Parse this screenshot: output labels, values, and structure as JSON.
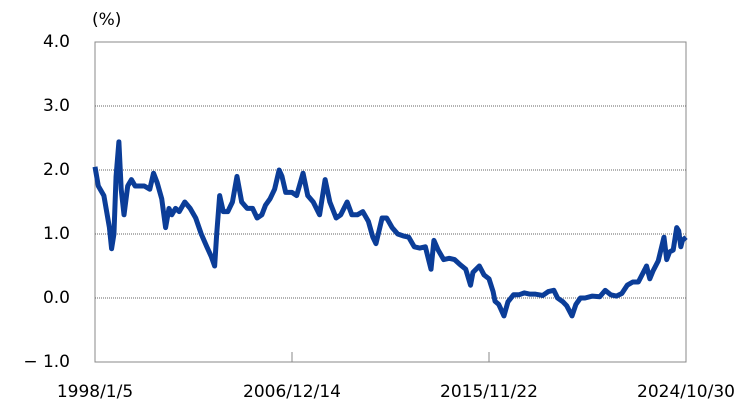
{
  "chart_data": {
    "type": "line",
    "y_label": "(%)",
    "x": [
      "1998/1/5",
      "1998/3/1",
      "1998/6/1",
      "1998/9/1",
      "1998/10/7",
      "1998/11/15",
      "1998/12/20",
      "1999/2/5",
      "1999/3/15",
      "1999/5/1",
      "1999/7/1",
      "1999/9/1",
      "1999/11/1",
      "2000/1/15",
      "2000/4/1",
      "2000/7/1",
      "2000/9/1",
      "2000/11/1",
      "2001/1/15",
      "2001/3/20",
      "2001/5/15",
      "2001/7/1",
      "2001/9/1",
      "2001/11/1",
      "2002/2/1",
      "2002/5/1",
      "2002/8/1",
      "2002/11/1",
      "2003/2/1",
      "2003/4/15",
      "2003/6/11",
      "2003/7/15",
      "2003/9/2",
      "2003/11/1",
      "2004/1/15",
      "2004/4/1",
      "2004/6/15",
      "2004/9/1",
      "2004/12/1",
      "2005/3/1",
      "2005/5/15",
      "2005/8/1",
      "2005/10/1",
      "2005/12/15",
      "2006/3/1",
      "2006/5/15",
      "2006/7/1",
      "2006/9/1",
      "2006/12/14",
      "2007/3/1",
      "2007/6/15",
      "2007/9/1",
      "2007/12/1",
      "2008/3/15",
      "2008/6/15",
      "2008/9/1",
      "2008/12/15",
      "2009/3/1",
      "2009/6/15",
      "2009/9/1",
      "2009/12/1",
      "2010/3/1",
      "2010/6/1",
      "2010/8/15",
      "2010/10/6",
      "2011/1/15",
      "2011/4/1",
      "2011/7/1",
      "2011/10/1",
      "2012/1/1",
      "2012/4/1",
      "2012/7/1",
      "2012/10/1",
      "2013/1/1",
      "2013/4/5",
      "2013/5/23",
      "2013/8/1",
      "2013/11/1",
      "2014/2/1",
      "2014/5/1",
      "2014/8/1",
      "2014/11/1",
      "2015/1/20",
      "2015/3/1",
      "2015/6/15",
      "2015/9/1",
      "2015/11/22",
      "2016/1/29",
      "2016/3/1",
      "2016/5/1",
      "2016/7/27",
      "2016/10/1",
      "2017/1/1",
      "2017/4/1",
      "2017/7/1",
      "2017/10/1",
      "2018/1/1",
      "2018/5/1",
      "2018/8/1",
      "2018/11/1",
      "2019/1/1",
      "2019/4/1",
      "2019/6/1",
      "2019/8/29",
      "2019/11/1",
      "2020/1/15",
      "2020/4/1",
      "2020/8/1",
      "2020/12/1",
      "2021/3/1",
      "2021/6/1",
      "2021/9/1",
      "2021/12/1",
      "2022/3/1",
      "2022/6/1",
      "2022/9/1",
      "2022/12/20",
      "2023/1/15",
      "2023/3/10",
      "2023/5/1",
      "2023/7/28",
      "2023/10/31",
      "2023/12/15",
      "2024/2/1",
      "2024/4/1",
      "2024/5/29",
      "2024/7/1",
      "2024/8/5",
      "2024/9/1",
      "2024/10/30"
    ],
    "series": [
      {
        "color": "#0b3d98",
        "values": [
          2.05,
          1.75,
          1.6,
          1.1,
          0.77,
          1.0,
          1.9,
          2.44,
          1.7,
          1.3,
          1.75,
          1.85,
          1.75,
          1.75,
          1.75,
          1.7,
          1.95,
          1.8,
          1.55,
          1.1,
          1.4,
          1.3,
          1.4,
          1.35,
          1.5,
          1.4,
          1.25,
          1.0,
          0.8,
          0.65,
          0.5,
          1.0,
          1.6,
          1.35,
          1.35,
          1.5,
          1.9,
          1.5,
          1.4,
          1.4,
          1.25,
          1.3,
          1.45,
          1.55,
          1.7,
          2.0,
          1.9,
          1.65,
          1.65,
          1.6,
          1.95,
          1.6,
          1.5,
          1.3,
          1.85,
          1.5,
          1.25,
          1.3,
          1.5,
          1.3,
          1.3,
          1.35,
          1.2,
          0.95,
          0.85,
          1.25,
          1.25,
          1.1,
          1.0,
          0.97,
          0.95,
          0.8,
          0.78,
          0.8,
          0.45,
          0.9,
          0.75,
          0.6,
          0.62,
          0.6,
          0.52,
          0.45,
          0.2,
          0.4,
          0.5,
          0.36,
          0.3,
          0.1,
          -0.05,
          -0.1,
          -0.28,
          -0.06,
          0.05,
          0.05,
          0.08,
          0.06,
          0.06,
          0.04,
          0.1,
          0.12,
          0.0,
          -0.06,
          -0.12,
          -0.28,
          -0.1,
          0.0,
          0.0,
          0.03,
          0.02,
          0.12,
          0.05,
          0.03,
          0.07,
          0.2,
          0.25,
          0.25,
          0.45,
          0.5,
          0.3,
          0.42,
          0.58,
          0.95,
          0.6,
          0.72,
          0.75,
          1.1,
          1.05,
          0.8,
          0.9,
          0.95
        ]
      }
    ],
    "xlim": [
      "1998/1/5",
      "2024/10/30"
    ],
    "xticks": [
      "1998/1/5",
      "2006/12/14",
      "2015/11/22",
      "2024/10/30"
    ],
    "ylim": [
      -1,
      4
    ],
    "yticks": [
      {
        "value": -1,
        "label": "− 1.0"
      },
      {
        "value": 0,
        "label": "0.0"
      },
      {
        "value": 1,
        "label": "1.0"
      },
      {
        "value": 2,
        "label": "2.0"
      },
      {
        "value": 3,
        "label": "3.0"
      },
      {
        "value": 4,
        "label": "4.0"
      }
    ],
    "grid": true
  }
}
